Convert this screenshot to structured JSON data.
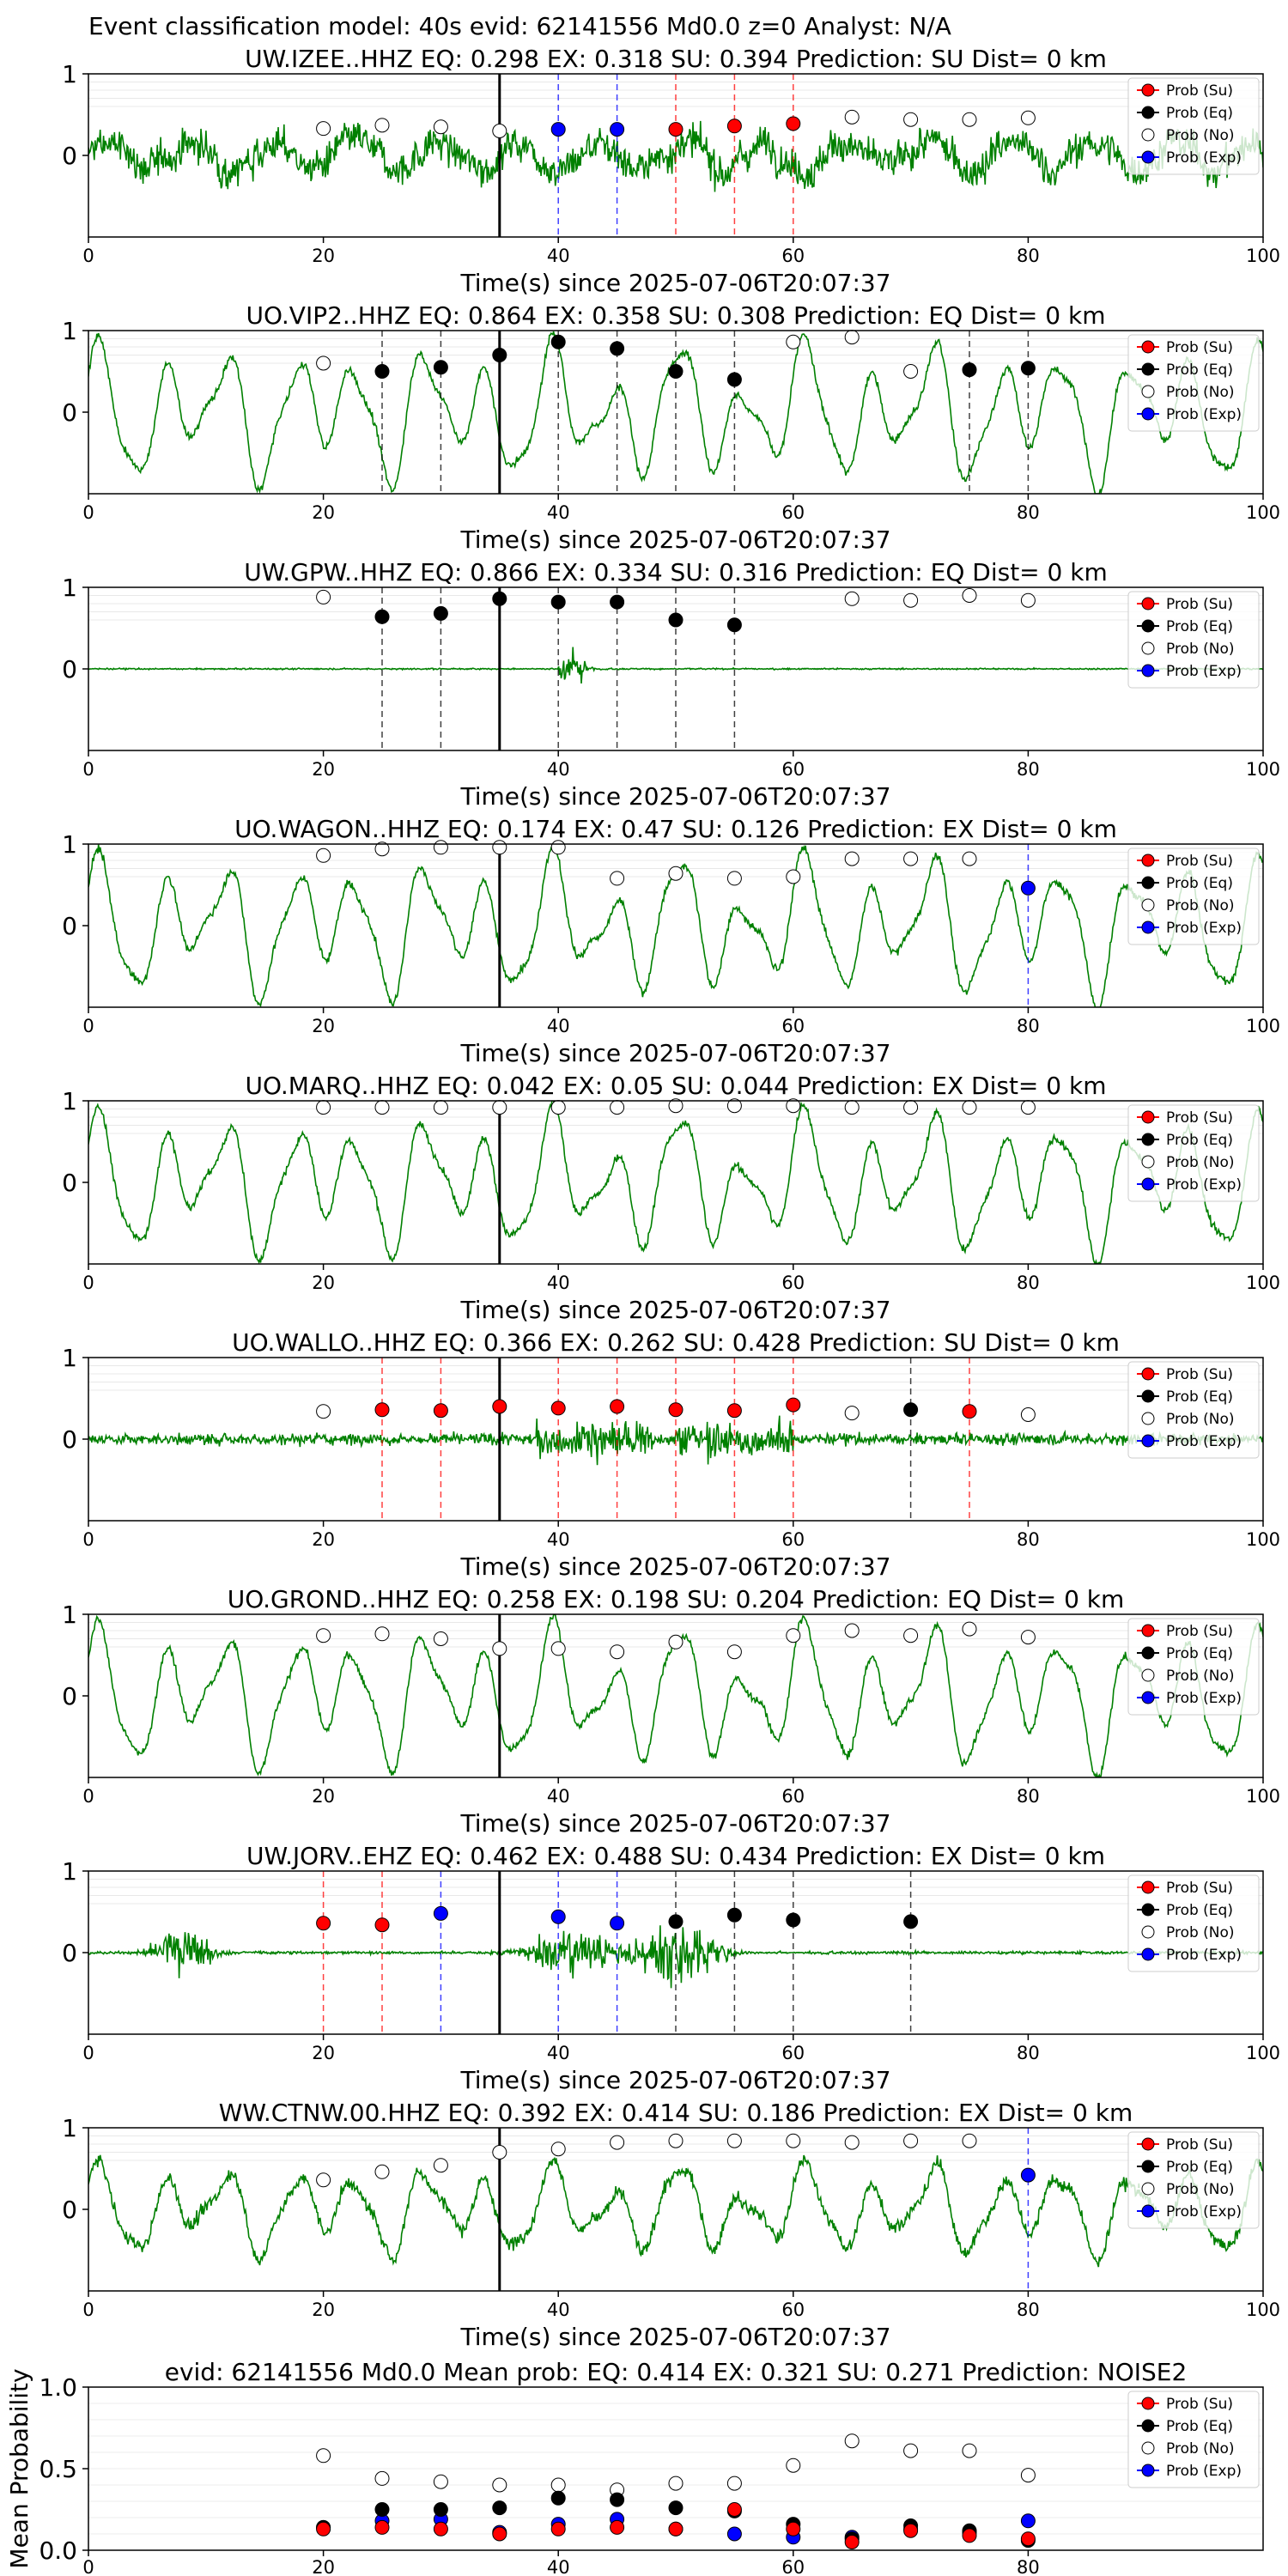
{
  "figure_title": "Event classification model: 40s evid: 62141556 Md0.0 z=0 Analyst: N/A",
  "xlabel": "Time(s) since 2025-07-06T20:07:37",
  "legend": {
    "su": "Prob (Su)",
    "eq": "Prob (Eq)",
    "no": "Prob (No)",
    "exp": "Prob (Exp)"
  },
  "colors": {
    "trace": "#008000",
    "su": "#ff0000",
    "eq": "#000000",
    "no": "#ffffff",
    "exp": "#0000ff"
  },
  "chart_data": [
    {
      "type": "line",
      "station": "UW.IZEE..HHZ",
      "title": "UW.IZEE..HHZ   EQ: 0.298  EX: 0.318  SU: 0.394   Prediction: SU    Dist= 0 km",
      "xlim": [
        0,
        100
      ],
      "ylim": [
        -1,
        1
      ],
      "xticks": [
        0,
        20,
        40,
        60,
        80,
        100
      ],
      "yticks": [
        0,
        1
      ],
      "pick_time": 35,
      "style": "noisy",
      "points": [
        {
          "t": 20,
          "cls": "no",
          "p": 0.33
        },
        {
          "t": 25,
          "cls": "no",
          "p": 0.37
        },
        {
          "t": 30,
          "cls": "no",
          "p": 0.35
        },
        {
          "t": 35,
          "cls": "no",
          "p": 0.3
        },
        {
          "t": 40,
          "cls": "exp",
          "p": 0.32
        },
        {
          "t": 45,
          "cls": "exp",
          "p": 0.32
        },
        {
          "t": 50,
          "cls": "su",
          "p": 0.32
        },
        {
          "t": 55,
          "cls": "su",
          "p": 0.36
        },
        {
          "t": 60,
          "cls": "su",
          "p": 0.39
        },
        {
          "t": 65,
          "cls": "no",
          "p": 0.47
        },
        {
          "t": 70,
          "cls": "no",
          "p": 0.44
        },
        {
          "t": 75,
          "cls": "no",
          "p": 0.44
        },
        {
          "t": 80,
          "cls": "no",
          "p": 0.46
        }
      ]
    },
    {
      "type": "line",
      "station": "UO.VIP2..HHZ",
      "title": "UO.VIP2..HHZ   EQ: 0.864  EX: 0.358  SU: 0.308   Prediction: EQ    Dist= 0 km",
      "xlim": [
        0,
        100
      ],
      "ylim": [
        -1,
        1
      ],
      "xticks": [
        0,
        20,
        40,
        60,
        80,
        100
      ],
      "yticks": [
        0,
        1
      ],
      "pick_time": 35,
      "style": "wave",
      "points": [
        {
          "t": 20,
          "cls": "no",
          "p": 0.6
        },
        {
          "t": 25,
          "cls": "eq",
          "p": 0.5
        },
        {
          "t": 30,
          "cls": "eq",
          "p": 0.55
        },
        {
          "t": 35,
          "cls": "eq",
          "p": 0.7
        },
        {
          "t": 40,
          "cls": "eq",
          "p": 0.86
        },
        {
          "t": 45,
          "cls": "eq",
          "p": 0.78
        },
        {
          "t": 50,
          "cls": "eq",
          "p": 0.5
        },
        {
          "t": 55,
          "cls": "eq",
          "p": 0.4
        },
        {
          "t": 60,
          "cls": "no",
          "p": 0.86
        },
        {
          "t": 65,
          "cls": "no",
          "p": 0.92
        },
        {
          "t": 70,
          "cls": "no",
          "p": 0.5
        },
        {
          "t": 75,
          "cls": "eq",
          "p": 0.52
        },
        {
          "t": 80,
          "cls": "eq",
          "p": 0.54
        }
      ]
    },
    {
      "type": "line",
      "station": "UW.GPW..HHZ",
      "title": "UW.GPW..HHZ   EQ: 0.866  EX: 0.334  SU: 0.316   Prediction: EQ    Dist= 0 km",
      "xlim": [
        0,
        100
      ],
      "ylim": [
        -1,
        1
      ],
      "xticks": [
        0,
        20,
        40,
        60,
        80,
        100
      ],
      "yticks": [
        0,
        1
      ],
      "pick_time": 35,
      "style": "flat_burst",
      "points": [
        {
          "t": 20,
          "cls": "no",
          "p": 0.88
        },
        {
          "t": 25,
          "cls": "eq",
          "p": 0.64
        },
        {
          "t": 30,
          "cls": "eq",
          "p": 0.68
        },
        {
          "t": 35,
          "cls": "eq",
          "p": 0.86
        },
        {
          "t": 40,
          "cls": "eq",
          "p": 0.82
        },
        {
          "t": 45,
          "cls": "eq",
          "p": 0.82
        },
        {
          "t": 50,
          "cls": "eq",
          "p": 0.6
        },
        {
          "t": 55,
          "cls": "eq",
          "p": 0.54
        },
        {
          "t": 65,
          "cls": "no",
          "p": 0.86
        },
        {
          "t": 70,
          "cls": "no",
          "p": 0.84
        },
        {
          "t": 75,
          "cls": "no",
          "p": 0.9
        },
        {
          "t": 80,
          "cls": "no",
          "p": 0.84
        }
      ]
    },
    {
      "type": "line",
      "station": "UO.WAGON..HHZ",
      "title": "UO.WAGON..HHZ   EQ: 0.174  EX: 0.47  SU: 0.126   Prediction: EX    Dist= 0 km",
      "xlim": [
        0,
        100
      ],
      "ylim": [
        -1,
        1
      ],
      "xticks": [
        0,
        20,
        40,
        60,
        80,
        100
      ],
      "yticks": [
        0,
        1
      ],
      "pick_time": 35,
      "style": "wave",
      "points": [
        {
          "t": 20,
          "cls": "no",
          "p": 0.86
        },
        {
          "t": 25,
          "cls": "no",
          "p": 0.94
        },
        {
          "t": 30,
          "cls": "no",
          "p": 0.96
        },
        {
          "t": 35,
          "cls": "no",
          "p": 0.96
        },
        {
          "t": 40,
          "cls": "no",
          "p": 0.96
        },
        {
          "t": 45,
          "cls": "no",
          "p": 0.58
        },
        {
          "t": 50,
          "cls": "no",
          "p": 0.64
        },
        {
          "t": 55,
          "cls": "no",
          "p": 0.58
        },
        {
          "t": 60,
          "cls": "no",
          "p": 0.6
        },
        {
          "t": 65,
          "cls": "no",
          "p": 0.82
        },
        {
          "t": 70,
          "cls": "no",
          "p": 0.82
        },
        {
          "t": 75,
          "cls": "no",
          "p": 0.82
        },
        {
          "t": 80,
          "cls": "exp",
          "p": 0.46
        }
      ]
    },
    {
      "type": "line",
      "station": "UO.MARQ..HHZ",
      "title": "UO.MARQ..HHZ   EQ: 0.042  EX: 0.05  SU: 0.044   Prediction: EX    Dist= 0 km",
      "xlim": [
        0,
        100
      ],
      "ylim": [
        -1,
        1
      ],
      "xticks": [
        0,
        20,
        40,
        60,
        80,
        100
      ],
      "yticks": [
        0,
        1
      ],
      "pick_time": 35,
      "style": "wave",
      "points": [
        {
          "t": 20,
          "cls": "no",
          "p": 0.92
        },
        {
          "t": 25,
          "cls": "no",
          "p": 0.92
        },
        {
          "t": 30,
          "cls": "no",
          "p": 0.92
        },
        {
          "t": 35,
          "cls": "no",
          "p": 0.92
        },
        {
          "t": 40,
          "cls": "no",
          "p": 0.92
        },
        {
          "t": 45,
          "cls": "no",
          "p": 0.92
        },
        {
          "t": 50,
          "cls": "no",
          "p": 0.94
        },
        {
          "t": 55,
          "cls": "no",
          "p": 0.94
        },
        {
          "t": 60,
          "cls": "no",
          "p": 0.94
        },
        {
          "t": 65,
          "cls": "no",
          "p": 0.92
        },
        {
          "t": 70,
          "cls": "no",
          "p": 0.92
        },
        {
          "t": 75,
          "cls": "no",
          "p": 0.92
        },
        {
          "t": 80,
          "cls": "no",
          "p": 0.92
        }
      ]
    },
    {
      "type": "line",
      "station": "UO.WALLO..HHZ",
      "title": "UO.WALLO..HHZ   EQ: 0.366  EX: 0.262  SU: 0.428   Prediction: SU    Dist= 0 km",
      "xlim": [
        0,
        100
      ],
      "ylim": [
        -1,
        1
      ],
      "xticks": [
        0,
        20,
        40,
        60,
        80,
        100
      ],
      "yticks": [
        0,
        1
      ],
      "pick_time": 35,
      "style": "noisy_bursts",
      "points": [
        {
          "t": 20,
          "cls": "no",
          "p": 0.34
        },
        {
          "t": 25,
          "cls": "su",
          "p": 0.36
        },
        {
          "t": 30,
          "cls": "su",
          "p": 0.35
        },
        {
          "t": 35,
          "cls": "su",
          "p": 0.4
        },
        {
          "t": 40,
          "cls": "su",
          "p": 0.38
        },
        {
          "t": 45,
          "cls": "su",
          "p": 0.4
        },
        {
          "t": 50,
          "cls": "su",
          "p": 0.36
        },
        {
          "t": 55,
          "cls": "su",
          "p": 0.35
        },
        {
          "t": 60,
          "cls": "su",
          "p": 0.42
        },
        {
          "t": 65,
          "cls": "no",
          "p": 0.32
        },
        {
          "t": 70,
          "cls": "eq",
          "p": 0.36
        },
        {
          "t": 75,
          "cls": "su",
          "p": 0.34
        },
        {
          "t": 80,
          "cls": "no",
          "p": 0.3
        }
      ]
    },
    {
      "type": "line",
      "station": "UO.GROND..HHZ",
      "title": "UO.GROND..HHZ   EQ: 0.258  EX: 0.198  SU: 0.204   Prediction: EQ    Dist= 0 km",
      "xlim": [
        0,
        100
      ],
      "ylim": [
        -1,
        1
      ],
      "xticks": [
        0,
        20,
        40,
        60,
        80,
        100
      ],
      "yticks": [
        0,
        1
      ],
      "pick_time": 35,
      "style": "wave",
      "points": [
        {
          "t": 20,
          "cls": "no",
          "p": 0.74
        },
        {
          "t": 25,
          "cls": "no",
          "p": 0.76
        },
        {
          "t": 30,
          "cls": "no",
          "p": 0.7
        },
        {
          "t": 35,
          "cls": "no",
          "p": 0.58
        },
        {
          "t": 40,
          "cls": "no",
          "p": 0.58
        },
        {
          "t": 45,
          "cls": "no",
          "p": 0.54
        },
        {
          "t": 50,
          "cls": "no",
          "p": 0.66
        },
        {
          "t": 55,
          "cls": "no",
          "p": 0.54
        },
        {
          "t": 60,
          "cls": "no",
          "p": 0.74
        },
        {
          "t": 65,
          "cls": "no",
          "p": 0.8
        },
        {
          "t": 70,
          "cls": "no",
          "p": 0.74
        },
        {
          "t": 75,
          "cls": "no",
          "p": 0.82
        },
        {
          "t": 80,
          "cls": "no",
          "p": 0.72
        }
      ]
    },
    {
      "type": "line",
      "station": "UW.JORV..EHZ",
      "title": "UW.JORV..EHZ   EQ: 0.462  EX: 0.488  SU: 0.434   Prediction: EX    Dist= 0 km",
      "xlim": [
        0,
        100
      ],
      "ylim": [
        -1,
        1
      ],
      "xticks": [
        0,
        20,
        40,
        60,
        80,
        100
      ],
      "yticks": [
        0,
        1
      ],
      "pick_time": 35,
      "style": "flat_bursts2",
      "points": [
        {
          "t": 20,
          "cls": "su",
          "p": 0.36
        },
        {
          "t": 25,
          "cls": "su",
          "p": 0.34
        },
        {
          "t": 30,
          "cls": "exp",
          "p": 0.48
        },
        {
          "t": 40,
          "cls": "exp",
          "p": 0.44
        },
        {
          "t": 45,
          "cls": "exp",
          "p": 0.36
        },
        {
          "t": 50,
          "cls": "eq",
          "p": 0.38
        },
        {
          "t": 55,
          "cls": "eq",
          "p": 0.46
        },
        {
          "t": 60,
          "cls": "eq",
          "p": 0.4
        },
        {
          "t": 70,
          "cls": "eq",
          "p": 0.38
        }
      ]
    },
    {
      "type": "line",
      "station": "WW.CTNW.00.HHZ",
      "title": "WW.CTNW.00.HHZ   EQ: 0.392  EX: 0.414  SU: 0.186   Prediction: EX    Dist= 0 km",
      "xlim": [
        0,
        100
      ],
      "ylim": [
        -1,
        1
      ],
      "xticks": [
        0,
        20,
        40,
        60,
        80,
        100
      ],
      "yticks": [
        0,
        1
      ],
      "pick_time": 35,
      "style": "noisy_wave",
      "points": [
        {
          "t": 20,
          "cls": "no",
          "p": 0.36
        },
        {
          "t": 25,
          "cls": "no",
          "p": 0.46
        },
        {
          "t": 30,
          "cls": "no",
          "p": 0.54
        },
        {
          "t": 35,
          "cls": "no",
          "p": 0.7
        },
        {
          "t": 40,
          "cls": "no",
          "p": 0.74
        },
        {
          "t": 45,
          "cls": "no",
          "p": 0.82
        },
        {
          "t": 50,
          "cls": "no",
          "p": 0.84
        },
        {
          "t": 55,
          "cls": "no",
          "p": 0.84
        },
        {
          "t": 60,
          "cls": "no",
          "p": 0.84
        },
        {
          "t": 65,
          "cls": "no",
          "p": 0.82
        },
        {
          "t": 70,
          "cls": "no",
          "p": 0.84
        },
        {
          "t": 75,
          "cls": "no",
          "p": 0.84
        },
        {
          "t": 80,
          "cls": "exp",
          "p": 0.42
        }
      ]
    },
    {
      "type": "scatter",
      "title": "evid: 62141556  Md0.0   Mean prob:    EQ: 0.414  EX: 0.321  SU: 0.271   Prediction: NOISE2",
      "ylabel": "Mean Probability",
      "xlim": [
        0,
        100
      ],
      "ylim": [
        0,
        1
      ],
      "xticks": [
        0,
        20,
        40,
        60,
        80
      ],
      "yticks": [
        0.0,
        0.5,
        1.0
      ],
      "ytick_labels": [
        "0.0",
        "0.5",
        "1.0"
      ],
      "x": [
        20,
        25,
        30,
        35,
        40,
        45,
        50,
        55,
        60,
        65,
        70,
        75,
        80
      ],
      "series": [
        {
          "name": "Prob (Su)",
          "cls": "su",
          "values": [
            0.13,
            0.14,
            0.13,
            0.1,
            0.13,
            0.14,
            0.13,
            0.25,
            0.13,
            0.05,
            0.12,
            0.09,
            0.07
          ]
        },
        {
          "name": "Prob (Eq)",
          "cls": "eq",
          "values": [
            0.14,
            0.25,
            0.25,
            0.26,
            0.32,
            0.31,
            0.26,
            0.24,
            0.16,
            0.07,
            0.15,
            0.12,
            0.06
          ]
        },
        {
          "name": "Prob (No)",
          "cls": "no",
          "values": [
            0.58,
            0.44,
            0.42,
            0.4,
            0.4,
            0.37,
            0.41,
            0.41,
            0.52,
            0.67,
            0.61,
            0.61,
            0.46
          ]
        },
        {
          "name": "Prob (Exp)",
          "cls": "exp",
          "values": [
            0.14,
            0.18,
            0.19,
            0.11,
            0.16,
            0.19,
            0.13,
            0.1,
            0.08,
            0.08,
            0.13,
            0.11,
            0.18
          ]
        }
      ]
    }
  ]
}
